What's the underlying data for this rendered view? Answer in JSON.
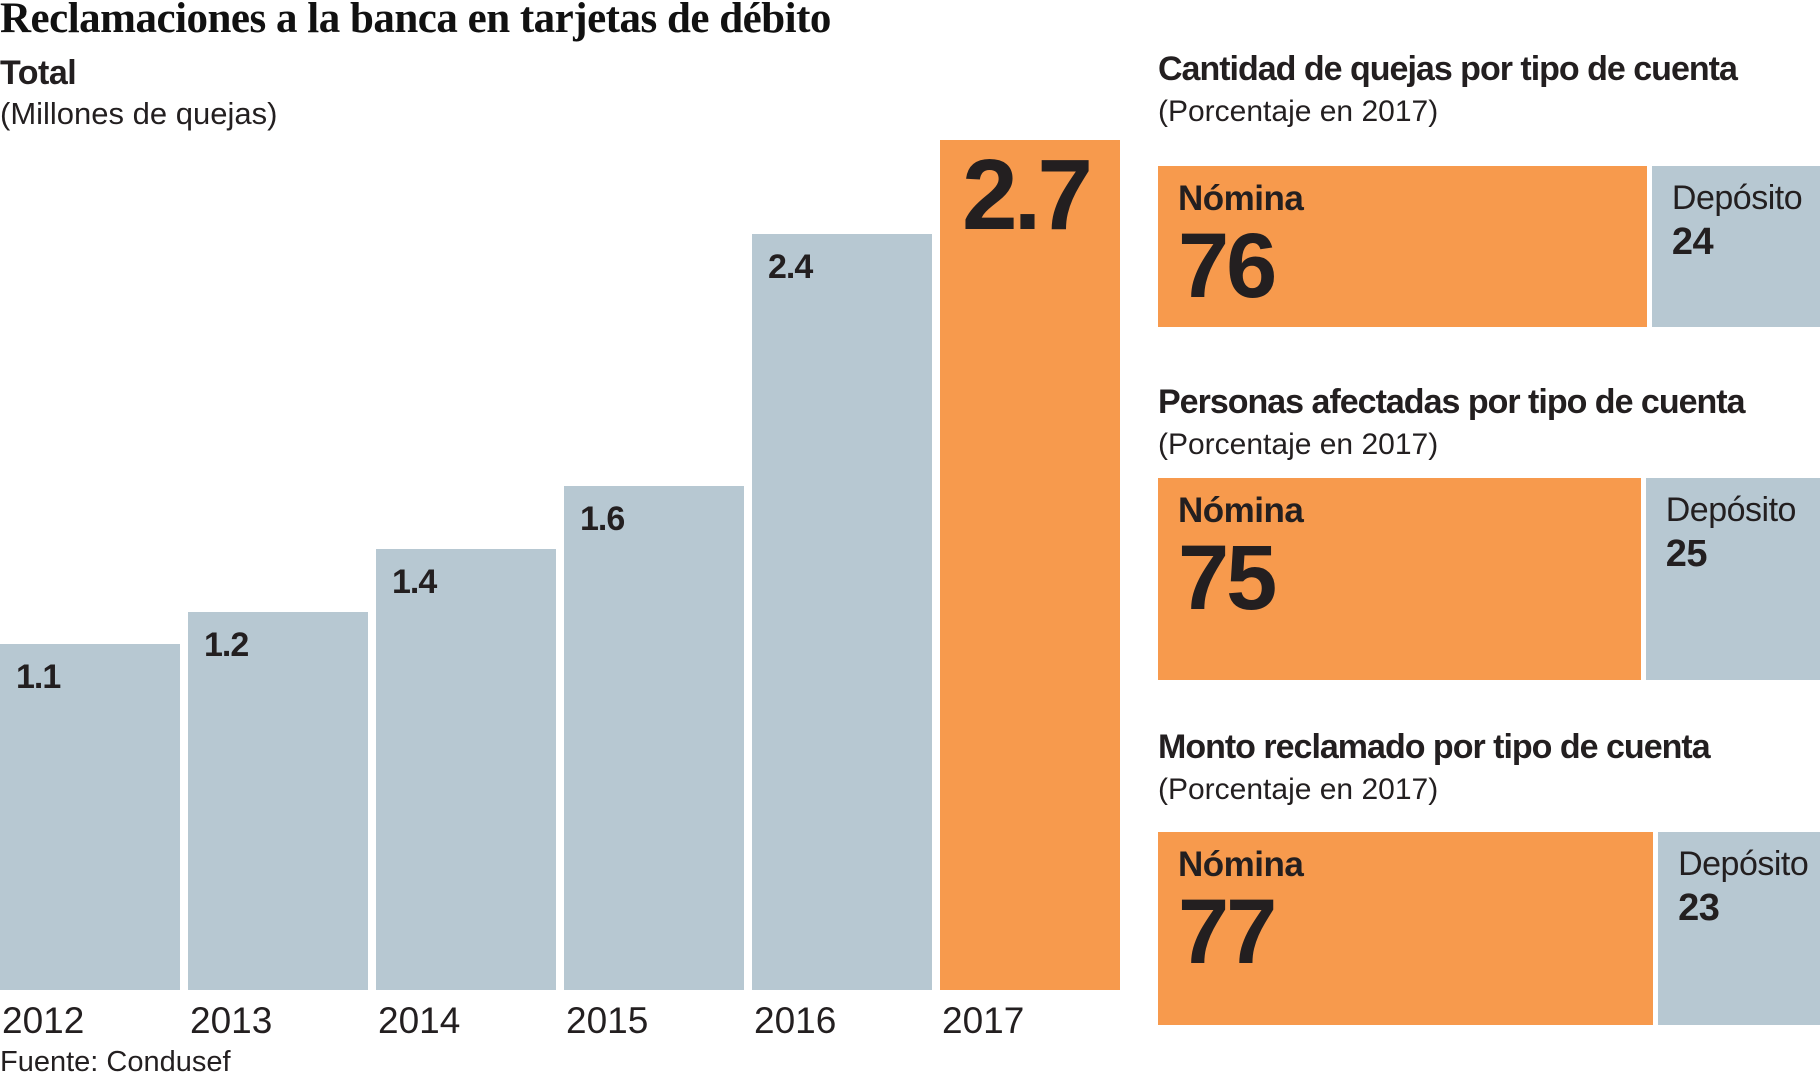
{
  "title": "Reclamaciones a la banca en tarjetas de débito",
  "source": "Fuente: Condusef",
  "colors": {
    "orange": "#F79A4D",
    "gray": "#B7C8D2",
    "text": "#231F20"
  },
  "chart_data": [
    {
      "type": "bar",
      "orientation": "vertical",
      "title": "Total",
      "subtitle": "(Millones de quejas)",
      "categories": [
        "2012",
        "2013",
        "2014",
        "2015",
        "2016",
        "2017"
      ],
      "values": [
        1.1,
        1.2,
        1.4,
        1.6,
        2.4,
        2.7
      ],
      "ylim": [
        0,
        2.7
      ],
      "grid": false,
      "highlight_category": "2017",
      "value_labels": [
        "1.1",
        "1.2",
        "1.4",
        "1.6",
        "2.4",
        "2.7"
      ]
    },
    {
      "type": "bar",
      "orientation": "horizontal-stacked",
      "title": "Cantidad de quejas por tipo de cuenta",
      "subtitle": "(Porcentaje en 2017)",
      "categories": [
        "Nómina",
        "Depósito"
      ],
      "values": [
        76,
        24
      ],
      "xlim": [
        0,
        100
      ]
    },
    {
      "type": "bar",
      "orientation": "horizontal-stacked",
      "title": "Personas afectadas por tipo de cuenta",
      "subtitle": "(Porcentaje en 2017)",
      "categories": [
        "Nómina",
        "Depósito"
      ],
      "values": [
        75,
        25
      ],
      "xlim": [
        0,
        100
      ]
    },
    {
      "type": "bar",
      "orientation": "horizontal-stacked",
      "title": "Monto reclamado por tipo de cuenta",
      "subtitle": "(Porcentaje en 2017)",
      "categories": [
        "Nómina",
        "Depósito"
      ],
      "values": [
        77,
        23
      ],
      "xlim": [
        0,
        100
      ]
    }
  ]
}
